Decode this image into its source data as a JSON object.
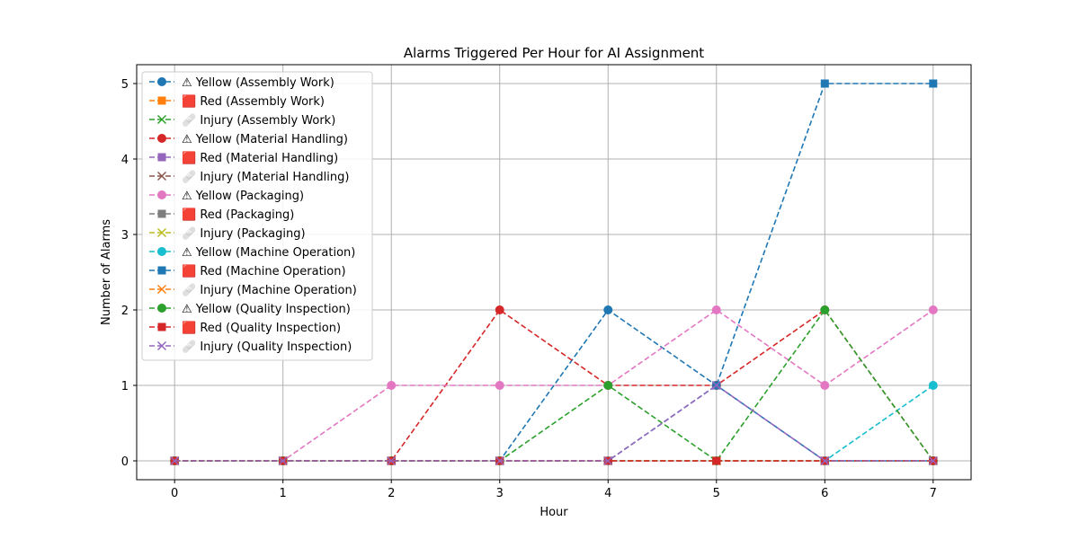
{
  "chart_data": {
    "type": "line",
    "title": "Alarms Triggered Per Hour for AI Assignment",
    "xlabel": "Hour",
    "ylabel": "Number of Alarms",
    "x": [
      0,
      1,
      2,
      3,
      4,
      5,
      6,
      7
    ],
    "xlim": [
      -0.35,
      7.35
    ],
    "ylim": [
      -0.25,
      5.25
    ],
    "xticks": [
      "0",
      "1",
      "2",
      "3",
      "4",
      "5",
      "6",
      "7"
    ],
    "yticks": [
      "0",
      "1",
      "2",
      "3",
      "4",
      "5"
    ],
    "grid": true,
    "legend_position": "upper-left",
    "series": [
      {
        "name": "⚠ Yellow (Assembly Work)",
        "color": "#1f77b4",
        "marker": "circle",
        "values": [
          0,
          0,
          0,
          0,
          2,
          1,
          0,
          0
        ]
      },
      {
        "name": "🟥 Red (Assembly Work)",
        "color": "#ff7f0e",
        "marker": "square",
        "values": [
          0,
          0,
          0,
          0,
          0,
          0,
          0,
          0
        ]
      },
      {
        "name": "🩹 Injury (Assembly Work)",
        "color": "#2ca02c",
        "marker": "x",
        "values": [
          0,
          0,
          0,
          0,
          0,
          0,
          0,
          0
        ]
      },
      {
        "name": "⚠ Yellow (Material Handling)",
        "color": "#d62728",
        "marker": "circle",
        "values": [
          0,
          0,
          0,
          2,
          1,
          1,
          2,
          0
        ]
      },
      {
        "name": "🟥 Red (Material Handling)",
        "color": "#9467bd",
        "marker": "square",
        "values": [
          0,
          0,
          0,
          0,
          0,
          0,
          0,
          0
        ]
      },
      {
        "name": "🩹 Injury (Material Handling)",
        "color": "#8c564b",
        "marker": "x",
        "values": [
          0,
          0,
          0,
          0,
          0,
          0,
          0,
          0
        ]
      },
      {
        "name": "⚠ Yellow (Packaging)",
        "color": "#e377c2",
        "marker": "circle",
        "values": [
          0,
          0,
          1,
          1,
          1,
          2,
          1,
          2
        ]
      },
      {
        "name": "🟥 Red (Packaging)",
        "color": "#7f7f7f",
        "marker": "square",
        "values": [
          0,
          0,
          0,
          0,
          0,
          0,
          0,
          0
        ]
      },
      {
        "name": "🩹 Injury (Packaging)",
        "color": "#bcbd22",
        "marker": "x",
        "values": [
          0,
          0,
          0,
          0,
          0,
          0,
          0,
          0
        ]
      },
      {
        "name": "⚠ Yellow (Machine Operation)",
        "color": "#17becf",
        "marker": "circle",
        "values": [
          0,
          0,
          0,
          0,
          0,
          0,
          0,
          1
        ]
      },
      {
        "name": "🟥 Red (Machine Operation)",
        "color": "#1f77b4",
        "marker": "square",
        "values": [
          0,
          0,
          0,
          0,
          0,
          1,
          5,
          5
        ]
      },
      {
        "name": "🩹 Injury (Machine Operation)",
        "color": "#ff7f0e",
        "marker": "x",
        "values": [
          0,
          0,
          0,
          0,
          0,
          0,
          0,
          0
        ]
      },
      {
        "name": "⚠ Yellow (Quality Inspection)",
        "color": "#2ca02c",
        "marker": "circle",
        "values": [
          0,
          0,
          0,
          0,
          1,
          0,
          2,
          0
        ]
      },
      {
        "name": "🟥 Red (Quality Inspection)",
        "color": "#d62728",
        "marker": "square",
        "values": [
          0,
          0,
          0,
          0,
          0,
          0,
          0,
          0
        ]
      },
      {
        "name": "🩹 Injury (Quality Inspection)",
        "color": "#9467bd",
        "marker": "x",
        "values": [
          0,
          0,
          0,
          0,
          0,
          1,
          0,
          0
        ]
      }
    ]
  }
}
